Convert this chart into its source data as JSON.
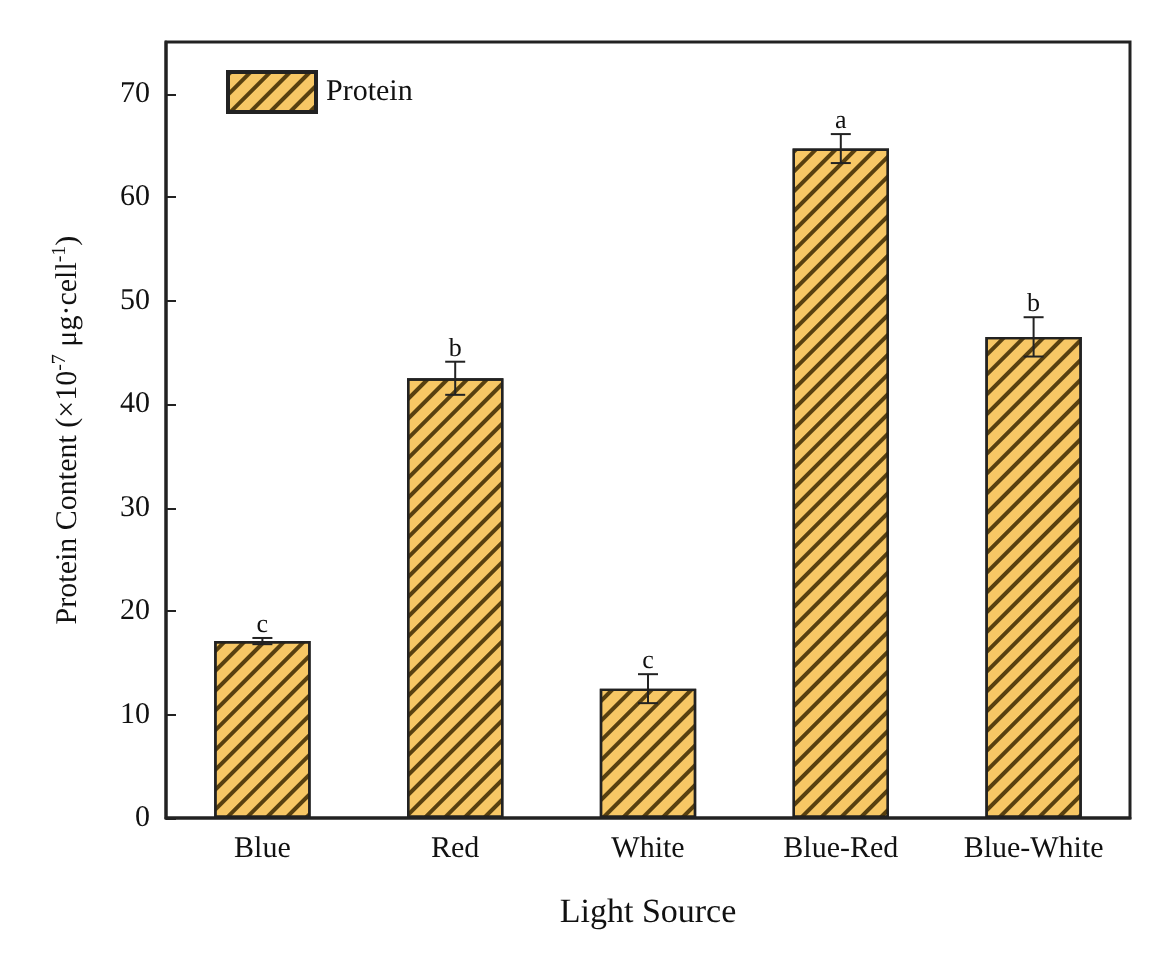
{
  "chart_data": {
    "type": "bar",
    "xlabel": "Light Source",
    "ylabel": "Protein Content (×10$^{-7}$ μg·cell$^{-1}$)",
    "categories": [
      "Blue",
      "Red",
      "White",
      "Blue-Red",
      "Blue-White"
    ],
    "series": [
      {
        "name": "Protein",
        "color": "#f7c765",
        "values": [
          17.1,
          42.5,
          12.5,
          64.7,
          46.5
        ],
        "errors": [
          0.3,
          1.6,
          1.4,
          1.4,
          1.9
        ],
        "value_labels": [
          "c",
          "b",
          "c",
          "a",
          "b"
        ]
      }
    ],
    "ylim": [
      0,
      75
    ],
    "yticks": [
      0,
      10,
      20,
      30,
      40,
      50,
      60,
      70
    ],
    "legend": "top left",
    "grid": false
  }
}
